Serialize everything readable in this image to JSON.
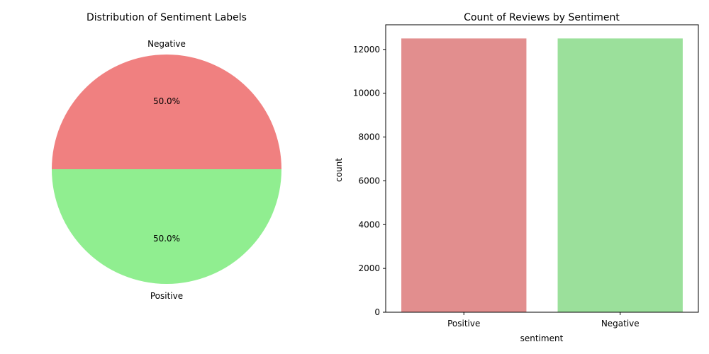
{
  "chart_data": [
    {
      "type": "pie",
      "title": "Distribution of Sentiment Labels",
      "slices": [
        {
          "label": "Negative",
          "value": 50.0,
          "pct_label": "50.0%",
          "color": "#f08080"
        },
        {
          "label": "Positive",
          "value": 50.0,
          "pct_label": "50.0%",
          "color": "#90ee90"
        }
      ]
    },
    {
      "type": "bar",
      "title": "Count of Reviews by Sentiment",
      "xlabel": "sentiment",
      "ylabel": "count",
      "categories": [
        "Positive",
        "Negative"
      ],
      "values": [
        12500,
        12500
      ],
      "colors": [
        "#e28e8e",
        "#9be09b"
      ],
      "ylim": [
        0,
        13125
      ],
      "yticks": [
        0,
        2000,
        4000,
        6000,
        8000,
        10000,
        12000
      ],
      "grid": false
    }
  ]
}
